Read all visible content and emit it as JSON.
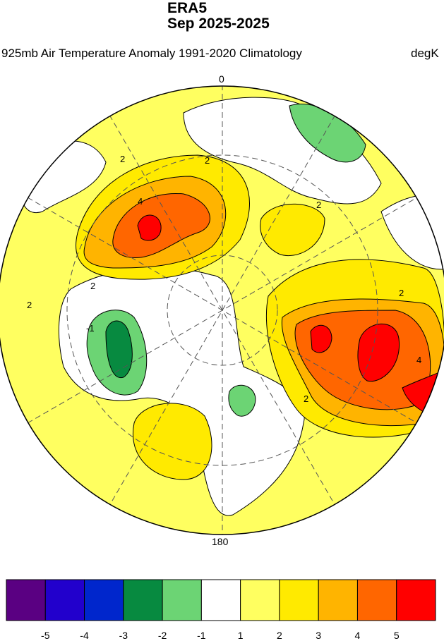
{
  "header": {
    "title_line1": "ERA5",
    "title_line2": "Sep 2025-2025",
    "left_subtitle": "925mb Air Temperature Anomaly  1991-2020 Climatology",
    "right_subtitle": "degK"
  },
  "map": {
    "projection": "north polar stereographic",
    "longitude_labels": {
      "top": "0",
      "bottom": "180"
    },
    "contour_labels": [
      "2",
      "2",
      "4",
      "2",
      "2",
      "-1",
      "2",
      "2",
      "4",
      "2"
    ]
  },
  "colorbar": {
    "colors": [
      "#5a0082",
      "#2200cc",
      "#0026cc",
      "#078a40",
      "#6cd474",
      "#ffffff",
      "#ffff60",
      "#ffea00",
      "#ffb400",
      "#ff6600",
      "#ff0000"
    ],
    "labels": [
      "-5",
      "-4",
      "-3",
      "-2",
      "-1",
      "1",
      "2",
      "3",
      "4",
      "5"
    ]
  }
}
